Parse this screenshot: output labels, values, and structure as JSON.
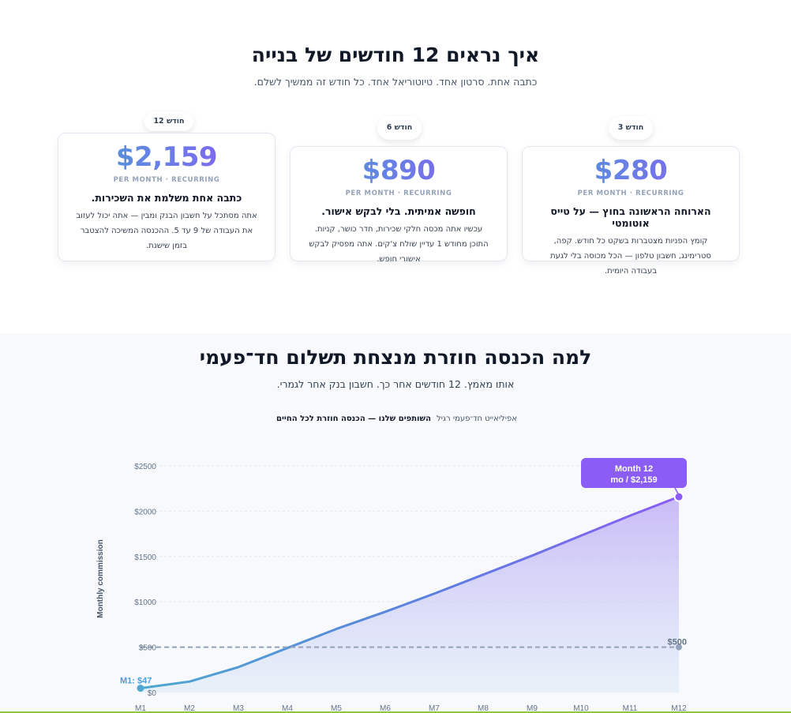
{
  "section_journey": {
    "title": "איך נראים 12 חודשים של בנייה",
    "subtitle": "כתבה אחת. סרטון אחד. טיוטוריאל אחד. כל חודש זה ממשיך לשלם.",
    "cards": [
      {
        "badge": "חודש 3",
        "amount": "$280",
        "per_month": "PER MONTH · RECURRING",
        "heading": "הארוחה הראשונה בחוץ — על טייס אוטומטי",
        "text": "קומץ הפניות מצטברות בשקט כל חודש. קפה, סטרימינג, חשבון טלפון — הכל מכוסה בלי לגעת בעבודה היומית."
      },
      {
        "badge": "חודש 6",
        "amount": "$890",
        "per_month": "PER MONTH · RECURRING",
        "heading": "חופשה אמיתית. בלי לבקש אישור.",
        "text": "עכשיו אתה מכסה חלקי שכירות, חדר כושר, קניות. התוכן מחודש 1 עדיין שולח צ'קים. אתה מפסיק לבקש אישורי חופש."
      },
      {
        "badge": "חודש 12",
        "amount": "$2,159",
        "per_month": "PER MONTH · RECURRING",
        "heading": "כתבה אחת משלמת את השכירות.",
        "text": "אתה מסתכל על חשבון הבנק ומבין — אתה יכול לעזוב את העבודה של 9 עד 5. ההכנסה המשיכה להצטבר בזמן שישנת."
      }
    ]
  },
  "section_compare": {
    "title": "למה הכנסה חוזרת מנצחת תשלום חד־פעמי",
    "subtitle": "אותו מאמץ. 12 חודשים אחר כך. חשבון בנק אחר לגמרי.",
    "legend": {
      "one_time": "אפיליאייט חד־פעמי רגיל",
      "recurring": "השותפים שלנו — הכנסה חוזרת לכל החיים"
    }
  },
  "colors": {
    "accent_blue": "#4a9fd6",
    "accent_purple": "#8b5cf6",
    "tooltip_bg": "#8b5cf6",
    "dashed_line": "#94a3b8"
  },
  "chart_data": {
    "type": "area",
    "ylabel": "Monthly commission",
    "xlabel": "",
    "x": [
      "M1",
      "M2",
      "M3",
      "M4",
      "M5",
      "M6",
      "M7",
      "M8",
      "M9",
      "M10",
      "M11",
      "M12"
    ],
    "ylim": [
      0,
      2500
    ],
    "yticks": [
      0,
      500,
      1000,
      1500,
      2000,
      2500
    ],
    "ytick_labels": [
      "$0",
      "$500",
      "$1000",
      "$1500",
      "$2000",
      "$2500"
    ],
    "grid": true,
    "series": [
      {
        "values": [
          47,
          120,
          280,
          490,
          700,
          890,
          1090,
          1300,
          1510,
          1730,
          1950,
          2159
        ]
      },
      {
        "values": [
          500,
          500,
          500,
          500,
          500,
          500,
          500,
          500,
          500,
          500,
          500,
          500
        ],
        "style": "dashed"
      }
    ],
    "annotations": {
      "start_label": "M1: $47",
      "end_label": "$500",
      "tooltip_line1": "Month 12",
      "tooltip_line2": "mo / $2,159"
    }
  }
}
